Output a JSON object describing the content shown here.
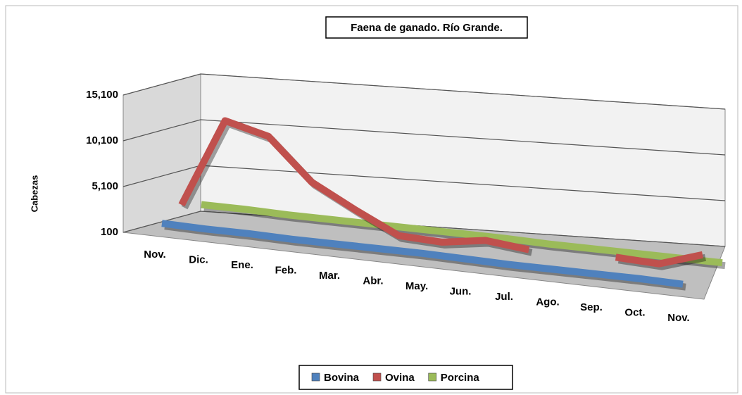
{
  "chart_data": {
    "type": "line3d",
    "title": "Faena de ganado. Río Grande.",
    "y_label": "Cabezas",
    "categories": [
      "Nov.",
      "Dic.",
      "Ene.",
      "Feb.",
      "Mar.",
      "Abr.",
      "May.",
      "Jun.",
      "Jul.",
      "Ago.",
      "Sep.",
      "Oct.",
      "Nov."
    ],
    "series": [
      {
        "name": "Bovina",
        "color": "#4f81bd",
        "values": [
          700,
          600,
          600,
          500,
          500,
          500,
          500,
          400,
          300,
          300,
          300,
          300,
          200
        ]
      },
      {
        "name": "Ovina",
        "color": "#c0504d",
        "values": [
          1800,
          11500,
          10300,
          5800,
          3300,
          1000,
          800,
          1500,
          1000,
          null,
          1200,
          1000,
          2500
        ]
      },
      {
        "name": "Porcina",
        "color": "#9bbb59",
        "values": [
          900,
          900,
          800,
          800,
          800,
          800,
          800,
          800,
          700,
          700,
          700,
          700,
          700
        ]
      }
    ],
    "ylim": [
      100,
      15100
    ],
    "yticks": [
      100,
      {
        "value": 5100,
        "label": "5,100"
      },
      {
        "value": 10100,
        "label": "10,100"
      },
      {
        "value": 15100,
        "label": "15,100"
      }
    ],
    "grid": true,
    "legend": "bottom"
  }
}
